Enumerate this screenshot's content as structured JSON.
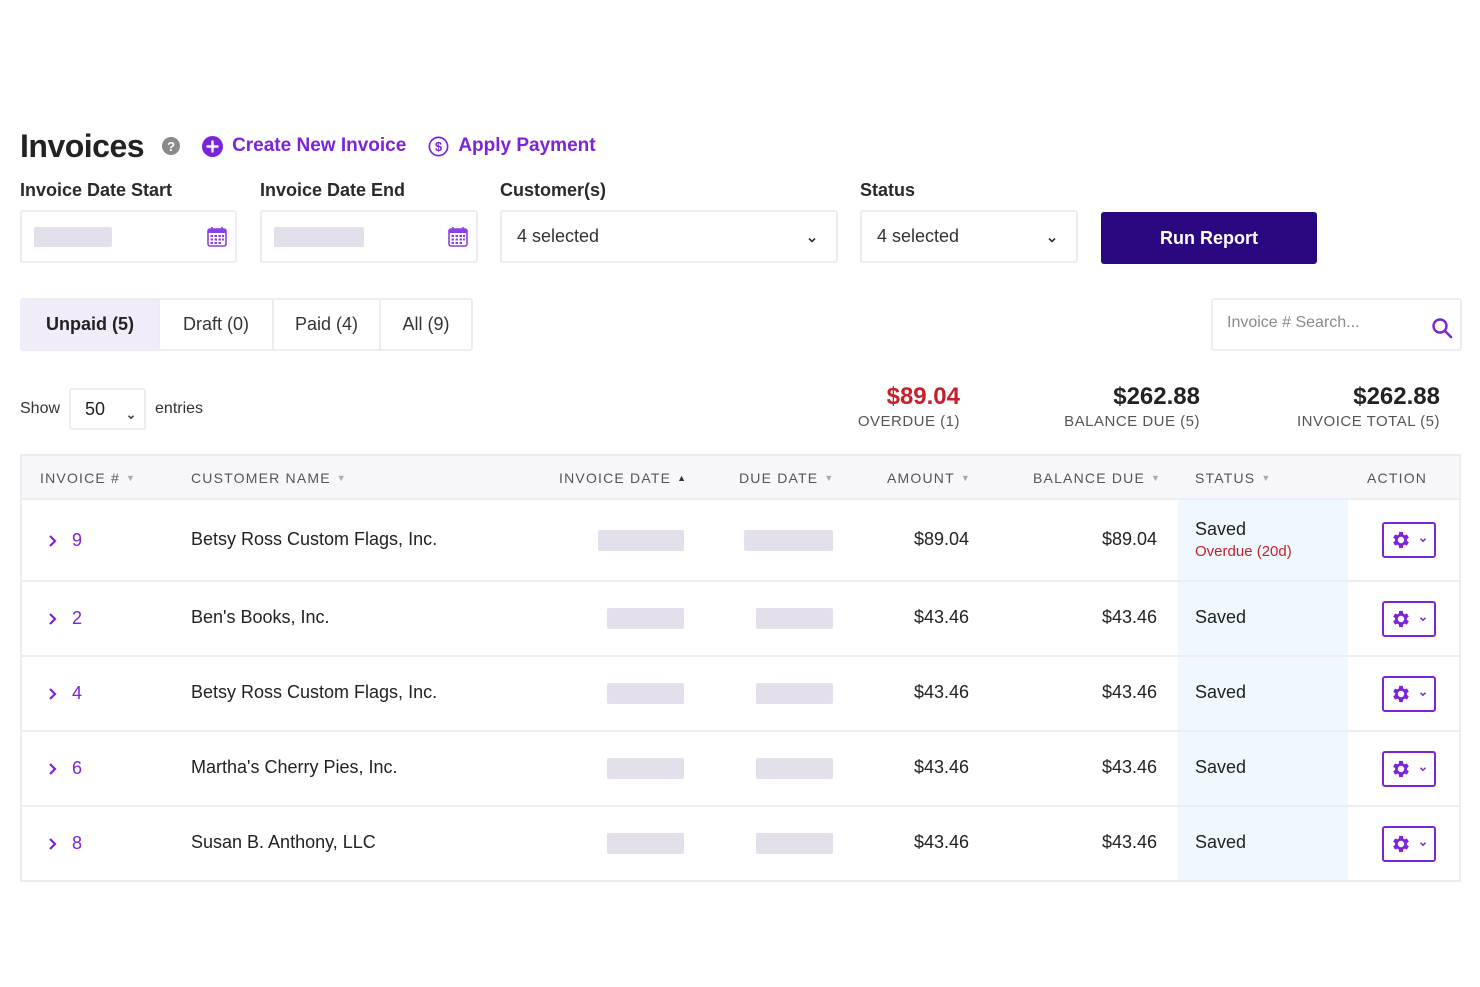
{
  "header": {
    "title": "Invoices",
    "help_icon": "?",
    "create_label": "Create New Invoice",
    "apply_label": "Apply Payment"
  },
  "filters": {
    "date_start_label": "Invoice Date Start",
    "date_end_label": "Invoice Date End",
    "customers_label": "Customer(s)",
    "customers_value": "4 selected",
    "status_label": "Status",
    "status_value": "4 selected",
    "run_report_label": "Run Report"
  },
  "tabs": [
    {
      "label": "Unpaid (5)",
      "active": true
    },
    {
      "label": "Draft (0)",
      "active": false
    },
    {
      "label": "Paid (4)",
      "active": false
    },
    {
      "label": "All (9)",
      "active": false
    }
  ],
  "search": {
    "placeholder": "Invoice # Search..."
  },
  "show": {
    "prefix": "Show",
    "value": "50",
    "suffix": "entries"
  },
  "summary": [
    {
      "value": "$89.04",
      "label": "OVERDUE (1)",
      "color": "#c8202a"
    },
    {
      "value": "$262.88",
      "label": "BALANCE DUE (5)"
    },
    {
      "value": "$262.88",
      "label": "INVOICE TOTAL (5)"
    }
  ],
  "table": {
    "columns": [
      "INVOICE #",
      "CUSTOMER NAME",
      "INVOICE DATE",
      "DUE DATE",
      "AMOUNT",
      "BALANCE DUE",
      "STATUS",
      "ACTION"
    ],
    "rows": [
      {
        "invoice": "9",
        "customer": "Betsy Ross Custom Flags, Inc.",
        "amount": "$89.04",
        "balance": "$89.04",
        "status": "Saved",
        "status_sub": "Overdue (20d)"
      },
      {
        "invoice": "2",
        "customer": "Ben's Books, Inc.",
        "amount": "$43.46",
        "balance": "$43.46",
        "status": "Saved",
        "status_sub": ""
      },
      {
        "invoice": "4",
        "customer": "Betsy Ross Custom Flags, Inc.",
        "amount": "$43.46",
        "balance": "$43.46",
        "status": "Saved",
        "status_sub": ""
      },
      {
        "invoice": "6",
        "customer": "Martha's Cherry Pies, Inc.",
        "amount": "$43.46",
        "balance": "$43.46",
        "status": "Saved",
        "status_sub": ""
      },
      {
        "invoice": "8",
        "customer": "Susan B. Anthony, LLC",
        "amount": "$43.46",
        "balance": "$43.46",
        "status": "Saved",
        "status_sub": ""
      }
    ]
  },
  "colors": {
    "accent": "#7b24d9",
    "primary_button": "#2a0880",
    "overdue": "#c8202a",
    "status_column_bg": "#eef8fd"
  }
}
